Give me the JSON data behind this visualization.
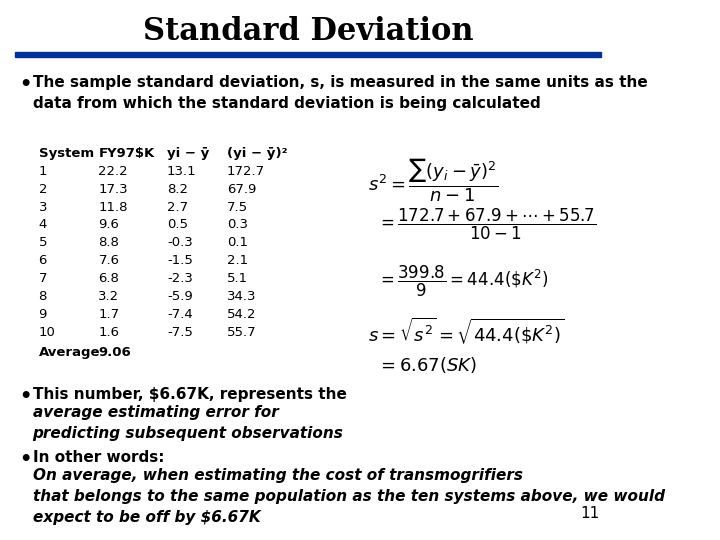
{
  "title": "Standard Deviation",
  "background_color": "#ffffff",
  "title_color": "#000000",
  "divider_color": "#003399",
  "bullet1_normal": "The sample standard deviation, s, is measured in the same units as the\ndata from which the standard deviation is being calculated",
  "table_headers": [
    "System",
    "FY97$K",
    "yi − y̅",
    "(yi − y̅)²"
  ],
  "table_data": [
    [
      "1",
      "22.2",
      "13.1",
      "172.7"
    ],
    [
      "2",
      "17.3",
      "8.2",
      "67.9"
    ],
    [
      "3",
      "11.8",
      "2.7",
      "7.5"
    ],
    [
      "4",
      "9.6",
      "0.5",
      "0.3"
    ],
    [
      "5",
      "8.8",
      "-0.3",
      "0.1"
    ],
    [
      "6",
      "7.6",
      "-1.5",
      "2.1"
    ],
    [
      "7",
      "6.8",
      "-2.3",
      "5.1"
    ],
    [
      "8",
      "3.2",
      "-5.9",
      "34.3"
    ],
    [
      "9",
      "1.7",
      "-7.4",
      "54.2"
    ],
    [
      "10",
      "1.6",
      "-7.5",
      "55.7"
    ]
  ],
  "table_footer": [
    "Average",
    "9.06",
    "",
    ""
  ],
  "bullet2_normal": "This number, $6.67K, represents the ",
  "bullet2_italic": "average estimating error for\npredicting subsequent observations",
  "bullet3_normal": "In other words: ",
  "bullet3_italic": "On average, when estimating the cost of transmogrifiers\nthat belongs to the same population as the ten systems above, we would\nexpect to be off by $6.67K",
  "page_number": "11",
  "formula_color": "#000000"
}
